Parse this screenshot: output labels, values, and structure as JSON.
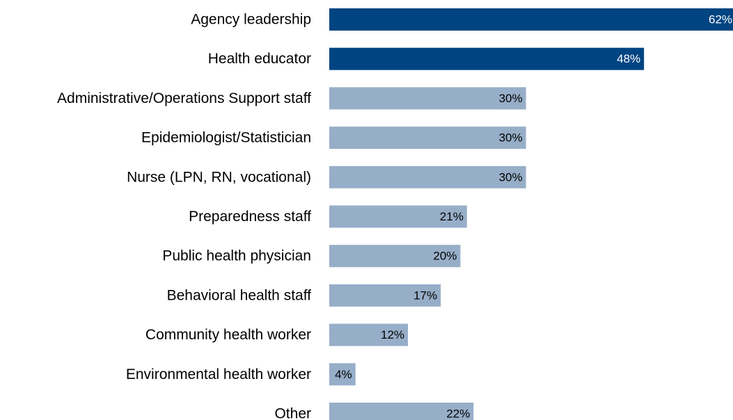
{
  "chart_data": {
    "type": "bar",
    "orientation": "horizontal",
    "categories": [
      "Agency leadership",
      "Health educator",
      "Administrative/Operations Support staff",
      "Epidemiologist/Statistician",
      "Nurse (LPN, RN, vocational)",
      "Preparedness staff",
      "Public health physician",
      "Behavioral health staff",
      "Community health worker",
      "Environmental health worker",
      "Other"
    ],
    "values": [
      62,
      48,
      30,
      30,
      30,
      21,
      20,
      17,
      12,
      4,
      22
    ],
    "value_labels": [
      "62%",
      "48%",
      "30%",
      "30%",
      "30%",
      "21%",
      "20%",
      "17%",
      "12%",
      "4%",
      "22%"
    ],
    "highlighted": [
      true,
      true,
      false,
      false,
      false,
      false,
      false,
      false,
      false,
      false,
      false
    ],
    "colors": {
      "highlight_bar": "#004481",
      "standard_bar": "#97aec8",
      "highlight_label": "#ffffff",
      "standard_label": "#000000"
    },
    "xlim": [
      0,
      62
    ],
    "grid": false,
    "legend": "none",
    "title": "",
    "xlabel": "",
    "ylabel": ""
  }
}
